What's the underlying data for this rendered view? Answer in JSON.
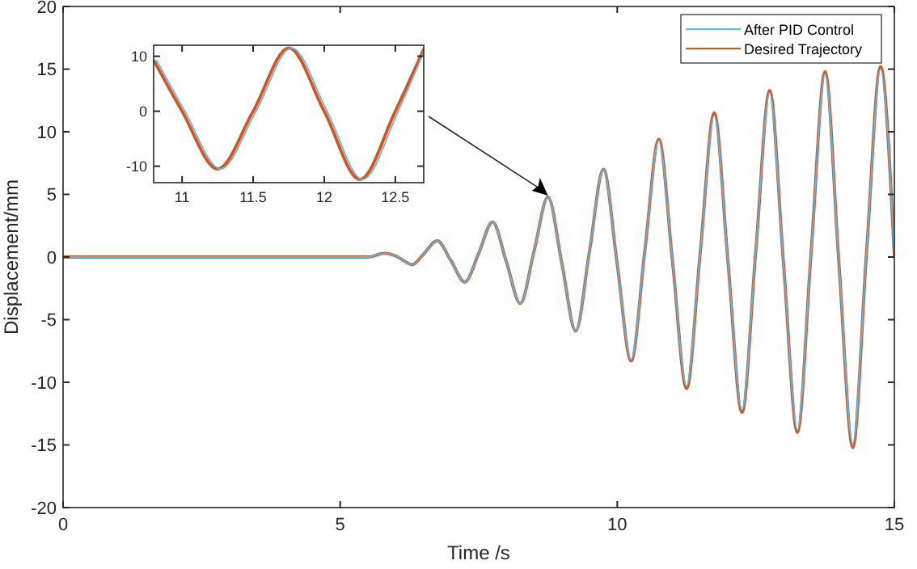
{
  "chart_data": [
    {
      "type": "line",
      "xlabel": "Time /s",
      "ylabel": "Displacement/mm",
      "xlim": [
        0,
        15
      ],
      "ylim": [
        -20,
        20
      ],
      "xticks": [
        0,
        5,
        10,
        15
      ],
      "yticks": [
        -20,
        -15,
        -10,
        -5,
        0,
        5,
        10,
        15,
        20
      ],
      "legend": "top right",
      "x": [
        0,
        5.5,
        5.8,
        6.0,
        6.3,
        6.5,
        6.75,
        7.0,
        7.25,
        7.5,
        7.75,
        8.0,
        8.25,
        8.5,
        8.75,
        9.0,
        9.25,
        9.5,
        9.75,
        10.0,
        10.25,
        10.5,
        10.75,
        11.0,
        11.25,
        11.5,
        11.75,
        12.0,
        12.25,
        12.5,
        12.75,
        13.0,
        13.25,
        13.5,
        13.75,
        14.0,
        14.25,
        14.5,
        14.75,
        15.0
      ],
      "series": [
        {
          "name": "After PID Control",
          "color": "#4dbeee",
          "values": [
            0,
            0,
            0.3,
            0.1,
            -0.6,
            0.2,
            1.3,
            -0.3,
            -2.0,
            0.3,
            2.8,
            -0.4,
            -3.7,
            0.5,
            4.8,
            -0.5,
            -5.9,
            0.5,
            7.0,
            -0.6,
            -8.2,
            0.6,
            9.3,
            -0.5,
            -10.3,
            0.5,
            11.3,
            -0.5,
            -12.2,
            0.5,
            13.1,
            -0.5,
            -13.8,
            0.5,
            14.6,
            -0.5,
            -14.9,
            0.5,
            15.0,
            0
          ]
        },
        {
          "name": "Desired Trajectory",
          "color": "#d95319",
          "values": [
            0,
            0,
            0.3,
            0.1,
            -0.6,
            0.2,
            1.3,
            -0.3,
            -2.0,
            0.3,
            2.8,
            -0.4,
            -3.7,
            0.5,
            4.8,
            -0.5,
            -5.9,
            0.5,
            7.0,
            -0.6,
            -8.3,
            0.6,
            9.4,
            -0.5,
            -10.5,
            0.5,
            11.5,
            -0.5,
            -12.4,
            0.5,
            13.3,
            -0.5,
            -14.0,
            0.5,
            14.8,
            -0.5,
            -15.2,
            0.5,
            15.2,
            0
          ]
        }
      ]
    },
    {
      "type": "line",
      "xlim": [
        10.8,
        12.7
      ],
      "ylim": [
        -13,
        12
      ],
      "xticks": [
        11,
        11.5,
        12,
        12.5
      ],
      "yticks": [
        -10,
        0,
        10
      ],
      "series": [
        {
          "color": "#4dbeee",
          "x": [
            10.82,
            11.02,
            11.27,
            11.52,
            11.77,
            12.02,
            12.27,
            12.52,
            12.7
          ],
          "values": [
            9.3,
            0,
            -10.5,
            0,
            11.5,
            0,
            -12.4,
            0,
            10.8
          ]
        },
        {
          "color": "#d95319",
          "x": [
            10.8,
            11.0,
            11.25,
            11.5,
            11.75,
            12.0,
            12.25,
            12.5,
            12.7
          ],
          "values": [
            9.3,
            0,
            -10.5,
            0,
            11.5,
            0,
            -12.4,
            0,
            11.3
          ]
        }
      ]
    }
  ]
}
